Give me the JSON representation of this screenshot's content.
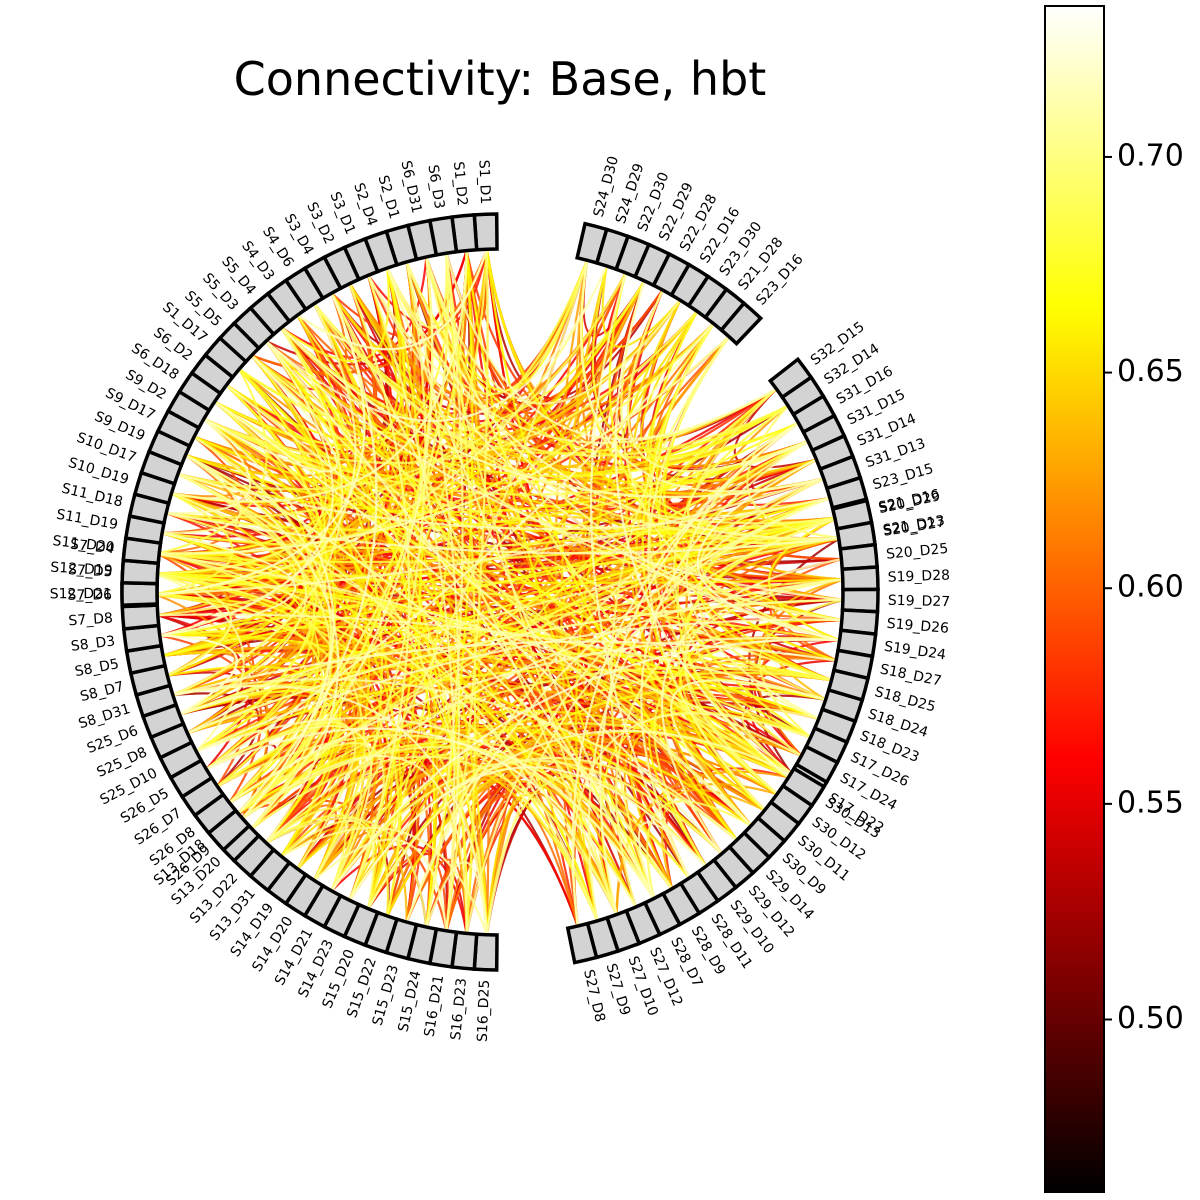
{
  "chart_data": {
    "type": "chord",
    "title": "Connectivity: Base, hbt",
    "colormap": "hot",
    "value_range": [
      0.46,
      0.735
    ],
    "colorbar": {
      "ticks": [
        0.5,
        0.55,
        0.6,
        0.65,
        0.7
      ],
      "tick_labels": [
        "0.50",
        "0.55",
        "0.60",
        "0.65",
        "0.70"
      ],
      "position": "right"
    },
    "node_color": "#d3d3d3",
    "node_groups": [
      {
        "labels": [
          "S1_D1",
          "S1_D2",
          "S6_D3",
          "S6_D31",
          "S2_D1",
          "S2_D4",
          "S3_D1",
          "S3_D2",
          "S3_D4",
          "S4_D6",
          "S4_D3",
          "S5_D4",
          "S5_D3",
          "S5_D5"
        ]
      },
      {
        "labels": [
          "S24_D30",
          "S24_D29",
          "S22_D30",
          "S22_D29",
          "S22_D28",
          "S22_D16",
          "S23_D30",
          "S21_D28",
          "S23_D16"
        ]
      },
      {
        "labels": [
          "S32_D15",
          "S32_D14",
          "S31_D16",
          "S31_D15",
          "S31_D14",
          "S31_D13",
          "S23_D15",
          "S21_D16",
          "S21_D13"
        ]
      },
      {
        "labels": [
          "S20_D29",
          "S20_D27",
          "S20_D25",
          "S19_D28",
          "S19_D27",
          "S19_D26",
          "S19_D24",
          "S18_D27",
          "S18_D25",
          "S18_D24",
          "S18_D23",
          "S17_D26",
          "S17_D24",
          "S17_D22"
        ]
      },
      {
        "labels": [
          "S30_D13",
          "S30_D12",
          "S30_D11",
          "S30_D9",
          "S29_D14",
          "S29_D12",
          "S29_D10",
          "S28_D11",
          "S28_D9",
          "S28_D7",
          "S27_D12",
          "S27_D10",
          "S27_D9",
          "S27_D8"
        ]
      },
      {
        "labels": [
          "S16_D25",
          "S16_D23",
          "S16_D21",
          "S15_D24",
          "S15_D23",
          "S15_D22",
          "S15_D20",
          "S14_D23",
          "S14_D21",
          "S14_D20",
          "S14_D19",
          "S13_D31",
          "S13_D22",
          "S13_D20",
          "S13_D18"
        ]
      },
      {
        "labels": [
          "S26_D9",
          "S26_D8",
          "S26_D7",
          "S26_D5",
          "S25_D10",
          "S25_D8",
          "S25_D6",
          "S8_D31",
          "S8_D7",
          "S8_D5",
          "S8_D3",
          "S7_D8",
          "S7_D6",
          "S7_D5",
          "S7_D4"
        ]
      },
      {
        "labels": [
          "S12_D21",
          "S12_D19",
          "S11_D20",
          "S11_D19",
          "S11_D18",
          "S10_D19",
          "S10_D17",
          "S9_D19",
          "S9_D17",
          "S9_D2",
          "S6_D18",
          "S6_D2",
          "S1_D17"
        ]
      }
    ]
  }
}
